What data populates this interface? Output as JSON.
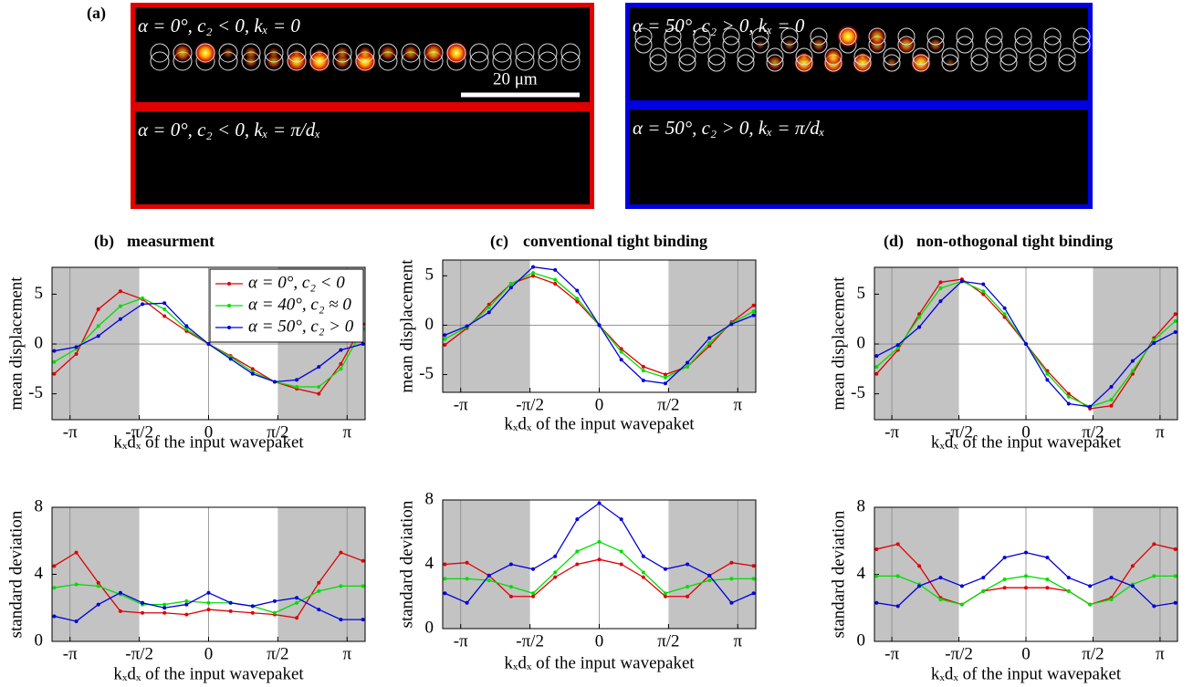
{
  "panel_a": {
    "label": "(a)",
    "scale_bar": "20 μm",
    "images": [
      {
        "caption": "α = 0°, c₂ < 0, kₓ = 0",
        "border": "#e00000"
      },
      {
        "caption": "α = 0°, c₂ < 0, kₓ = π/dₓ",
        "border": "#e00000"
      },
      {
        "caption": "α = 50°, c₂ > 0, kₓ = 0",
        "border": "#0000e0"
      },
      {
        "caption": "α = 50°, c₂ > 0, kₓ = π/dₓ",
        "border": "#0000e0"
      }
    ]
  },
  "chart_data": [
    {
      "type": "line",
      "panel_label": "(b)",
      "title": "measurment",
      "xlabel": "kₓdₓ of the input wavepaket",
      "ylabel": "mean displacement",
      "x": [
        -3.5,
        -3,
        -2.5,
        -2,
        -1.5,
        -1,
        -0.5,
        0,
        0.5,
        1,
        1.5,
        2,
        2.5,
        3,
        3.5
      ],
      "xlim": [
        -3.55,
        3.55
      ],
      "xticks": [
        {
          "value": -3.14159,
          "label": "-π"
        },
        {
          "value": -1.5708,
          "label": "-π/2"
        },
        0,
        {
          "value": 1.5708,
          "label": "π/2"
        },
        {
          "value": 3.14159,
          "label": "π"
        }
      ],
      "ylim": [
        -7.6,
        7.7
      ],
      "yticks": [
        -5,
        0,
        5
      ],
      "shaded": [
        [
          -3.55,
          -1.5708
        ],
        [
          1.5708,
          3.55
        ]
      ],
      "vlines": [
        -3.14159,
        0,
        3.14159
      ],
      "hlines": [
        0
      ],
      "legend": "upper right",
      "series": [
        {
          "name": "α = 0°, c₂ < 0",
          "color": "#e00000",
          "values": [
            -3,
            -1,
            3.5,
            5.3,
            4.5,
            2.8,
            1.3,
            0,
            -1.2,
            -2.5,
            -3.8,
            -4.5,
            -5,
            -2,
            2
          ]
        },
        {
          "name": "α = 40°, c₂ ≈ 0",
          "color": "#00dd00",
          "values": [
            -1.8,
            -0.5,
            1.8,
            3.8,
            4.6,
            3.5,
            1.5,
            0,
            -1.3,
            -2.8,
            -3.8,
            -4.3,
            -4.3,
            -2.5,
            1.5
          ]
        },
        {
          "name": "α = 50°, c₂ > 0",
          "color": "#0000dd",
          "values": [
            -0.7,
            -0.3,
            0.8,
            2.5,
            4,
            4.1,
            1.8,
            0,
            -1.5,
            -3,
            -3.8,
            -3.6,
            -2.3,
            -0.6,
            0
          ]
        }
      ]
    },
    {
      "type": "line",
      "xlabel": "kₓdₓ of the input wavepaket",
      "ylabel": "standard deviation",
      "x": [
        -3.5,
        -3,
        -2.5,
        -2,
        -1.5,
        -1,
        -0.5,
        0,
        0.5,
        1,
        1.5,
        2,
        2.5,
        3,
        3.5
      ],
      "xlim": [
        -3.55,
        3.55
      ],
      "xticks": [
        {
          "value": -3.14159,
          "label": "-π"
        },
        {
          "value": -1.5708,
          "label": "-π/2"
        },
        0,
        {
          "value": 1.5708,
          "label": "π/2"
        },
        {
          "value": 3.14159,
          "label": "π"
        }
      ],
      "ylim": [
        0,
        8
      ],
      "yticks": [
        0,
        4,
        8
      ],
      "shaded": [
        [
          -3.55,
          -1.5708
        ],
        [
          1.5708,
          3.55
        ]
      ],
      "vlines": [
        -3.14159,
        0,
        3.14159
      ],
      "series": [
        {
          "color": "#e00000",
          "values": [
            4.5,
            5.3,
            3.5,
            1.8,
            1.7,
            1.7,
            1.6,
            1.9,
            1.8,
            1.7,
            1.6,
            1.4,
            3.5,
            5.3,
            4.8
          ]
        },
        {
          "color": "#00dd00",
          "values": [
            3.2,
            3.4,
            3.3,
            2.8,
            2.2,
            2.2,
            2.4,
            2.3,
            2.3,
            2.1,
            1.7,
            2.3,
            3,
            3.3,
            3.3
          ]
        },
        {
          "color": "#0000dd",
          "values": [
            1.5,
            1.2,
            2.2,
            2.9,
            2.3,
            2,
            2.2,
            2.9,
            2.3,
            2.1,
            2.4,
            2.6,
            1.9,
            1.3,
            1.3
          ]
        }
      ]
    },
    {
      "type": "line",
      "panel_label": "(c)",
      "title": "conventional tight binding",
      "xlabel": "kₓdₓ of the input wavepaket",
      "ylabel": "mean displacement",
      "x": [
        -3.5,
        -3,
        -2.5,
        -2,
        -1.5,
        -1,
        -0.5,
        0,
        0.5,
        1,
        1.5,
        2,
        2.5,
        3,
        3.5
      ],
      "xlim": [
        -3.55,
        3.55
      ],
      "xticks": [
        {
          "value": -3.14159,
          "label": "-π"
        },
        {
          "value": -1.5708,
          "label": "-π/2"
        },
        0,
        {
          "value": 1.5708,
          "label": "π/2"
        },
        {
          "value": 3.14159,
          "label": "π"
        }
      ],
      "ylim": [
        -6.8,
        6.6
      ],
      "yticks": [
        -5,
        0,
        5
      ],
      "shaded": [
        [
          -3.55,
          -1.5708
        ],
        [
          1.5708,
          3.55
        ]
      ],
      "vlines": [
        -3.14159,
        0,
        3.14159
      ],
      "hlines": [
        0
      ],
      "series": [
        {
          "color": "#e00000",
          "values": [
            -2,
            -0.3,
            2.1,
            4.2,
            5,
            4.2,
            2.4,
            0,
            -2.4,
            -4.2,
            -5,
            -4.2,
            -2.1,
            0.3,
            2
          ]
        },
        {
          "color": "#00dd00",
          "values": [
            -1.4,
            -0.2,
            1.8,
            4.2,
            5.3,
            4.6,
            2.7,
            0,
            -2.7,
            -4.6,
            -5.3,
            -4.2,
            -1.8,
            0.2,
            1.4
          ]
        },
        {
          "color": "#0000dd",
          "values": [
            -1,
            -0.1,
            1.3,
            3.8,
            5.9,
            5.6,
            3.5,
            0,
            -3.5,
            -5.6,
            -5.9,
            -3.8,
            -1.3,
            0.1,
            1
          ]
        }
      ]
    },
    {
      "type": "line",
      "xlabel": "kₓdₓ of the input wavepaket",
      "ylabel": "standard deviation",
      "x": [
        -3.5,
        -3,
        -2.5,
        -2,
        -1.5,
        -1,
        -0.5,
        0,
        0.5,
        1,
        1.5,
        2,
        2.5,
        3,
        3.5
      ],
      "xlim": [
        -3.55,
        3.55
      ],
      "xticks": [
        {
          "value": -3.14159,
          "label": "-π"
        },
        {
          "value": -1.5708,
          "label": "-π/2"
        },
        0,
        {
          "value": 1.5708,
          "label": "π/2"
        },
        {
          "value": 3.14159,
          "label": "π"
        }
      ],
      "ylim": [
        0,
        8
      ],
      "yticks": [
        0,
        4,
        8
      ],
      "shaded": [
        [
          -3.55,
          -1.5708
        ],
        [
          1.5708,
          3.55
        ]
      ],
      "vlines": [
        -3.14159,
        0,
        3.14159
      ],
      "series": [
        {
          "color": "#e00000",
          "values": [
            4,
            4.1,
            3.3,
            2,
            2,
            3.2,
            4,
            4.3,
            4,
            3.2,
            2,
            2,
            3.3,
            4.1,
            3.9
          ]
        },
        {
          "color": "#00dd00",
          "values": [
            3.1,
            3.1,
            3,
            2.6,
            2.2,
            3.5,
            4.8,
            5.4,
            4.8,
            3.5,
            2.2,
            2.6,
            3,
            3.1,
            3.1
          ]
        },
        {
          "color": "#0000dd",
          "values": [
            2.2,
            1.6,
            3.3,
            4,
            3.7,
            4.5,
            6.8,
            7.8,
            6.8,
            4.5,
            3.7,
            4,
            3.3,
            1.6,
            2.2
          ]
        }
      ]
    },
    {
      "type": "line",
      "panel_label": "(d)",
      "title": "non-othogonal tight binding",
      "xlabel": "kₓdₓ of the input wavepaket",
      "ylabel": "mean displacement",
      "x": [
        -3.5,
        -3,
        -2.5,
        -2,
        -1.5,
        -1,
        -0.5,
        0,
        0.5,
        1,
        1.5,
        2,
        2.5,
        3,
        3.5
      ],
      "xlim": [
        -3.55,
        3.55
      ],
      "xticks": [
        {
          "value": -3.14159,
          "label": "-π"
        },
        {
          "value": -1.5708,
          "label": "-π/2"
        },
        0,
        {
          "value": 1.5708,
          "label": "π/2"
        },
        {
          "value": 3.14159,
          "label": "π"
        }
      ],
      "ylim": [
        -7.6,
        7.7
      ],
      "yticks": [
        -5,
        0,
        5
      ],
      "shaded": [
        [
          -3.55,
          -1.5708
        ],
        [
          1.5708,
          3.55
        ]
      ],
      "vlines": [
        -3.14159,
        0,
        3.14159
      ],
      "hlines": [
        0
      ],
      "series": [
        {
          "color": "#e00000",
          "values": [
            -3,
            -0.6,
            3,
            6.2,
            6.5,
            5,
            2.7,
            0,
            -2.7,
            -5,
            -6.5,
            -6.2,
            -3,
            0.6,
            3
          ]
        },
        {
          "color": "#00dd00",
          "values": [
            -2.3,
            -0.4,
            2.7,
            5.6,
            6.3,
            5.3,
            3,
            0,
            -3,
            -5.3,
            -6.3,
            -5.6,
            -2.7,
            0.4,
            2.3
          ]
        },
        {
          "color": "#0000dd",
          "values": [
            -1.2,
            -0.1,
            1.7,
            4.3,
            6.3,
            6,
            3.6,
            0,
            -3.6,
            -6,
            -6.3,
            -4.3,
            -1.7,
            0.1,
            1.2
          ]
        }
      ]
    },
    {
      "type": "line",
      "xlabel": "kₓdₓ of the input wavepaket",
      "ylabel": "standard deviation",
      "x": [
        -3.5,
        -3,
        -2.5,
        -2,
        -1.5,
        -1,
        -0.5,
        0,
        0.5,
        1,
        1.5,
        2,
        2.5,
        3,
        3.5
      ],
      "xlim": [
        -3.55,
        3.55
      ],
      "xticks": [
        {
          "value": -3.14159,
          "label": "-π"
        },
        {
          "value": -1.5708,
          "label": "-π/2"
        },
        0,
        {
          "value": 1.5708,
          "label": "π/2"
        },
        {
          "value": 3.14159,
          "label": "π"
        }
      ],
      "ylim": [
        0,
        8
      ],
      "yticks": [
        0,
        4,
        8
      ],
      "shaded": [
        [
          -3.55,
          -1.5708
        ],
        [
          1.5708,
          3.55
        ]
      ],
      "vlines": [
        -3.14159,
        0,
        3.14159
      ],
      "series": [
        {
          "color": "#e00000",
          "values": [
            5.5,
            5.8,
            4.5,
            2.6,
            2.2,
            3,
            3.2,
            3.2,
            3.2,
            3,
            2.2,
            2.6,
            4.5,
            5.8,
            5.5
          ]
        },
        {
          "color": "#00dd00",
          "values": [
            3.9,
            3.9,
            3.4,
            2.5,
            2.2,
            3,
            3.7,
            3.9,
            3.7,
            3,
            2.2,
            2.5,
            3.4,
            3.9,
            3.9
          ]
        },
        {
          "color": "#0000dd",
          "values": [
            2.3,
            2.1,
            3.3,
            3.8,
            3.3,
            3.8,
            5,
            5.3,
            5,
            3.8,
            3.3,
            3.8,
            3.3,
            2.1,
            2.3
          ]
        }
      ]
    }
  ]
}
